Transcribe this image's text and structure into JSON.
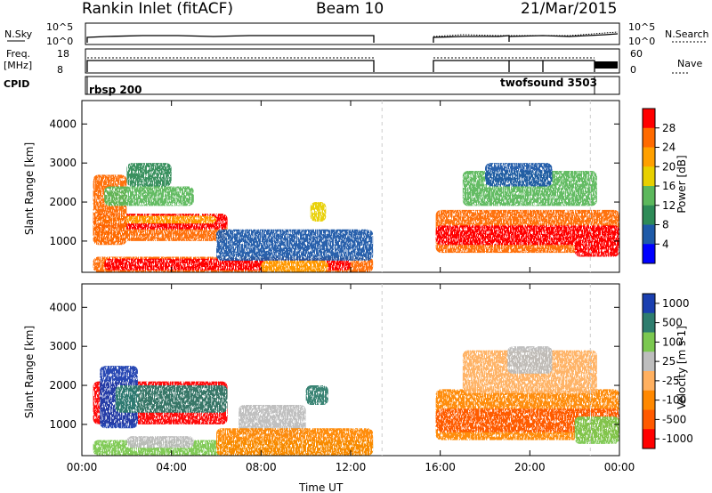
{
  "header": {
    "station": "Rankin Inlet (fitACF)",
    "beam": "Beam 10",
    "date": "21/Mar/2015"
  },
  "top_panels": {
    "nsky_label": "N.Sky",
    "nsearch_label": "N.Search",
    "nsky_ticks": [
      "10^5",
      "10^0"
    ],
    "nsky_right_ticks": [
      "10^5",
      "10^0"
    ],
    "freq_label_1": "Freq.",
    "freq_label_2": "[MHz]",
    "freq_ticks": [
      "18",
      "8"
    ],
    "nave_label": "Nave",
    "nave_ticks": [
      "60",
      "0"
    ],
    "cpid_label": "CPID",
    "cpid_values": [
      "rbsp 200",
      "twofsound 3503"
    ]
  },
  "chart_data": [
    {
      "type": "heatmap",
      "title": "",
      "ylabel": "Slant Range [km]",
      "ylim": [
        200,
        4600
      ],
      "yticks": [
        "4000",
        "3000",
        "2000",
        "1000"
      ],
      "colorbar_label": "Power [dB]",
      "colorbar_ticks": [
        "28",
        "24",
        "20",
        "16",
        "12",
        "8",
        "4"
      ],
      "colors": [
        "#ff0000",
        "#ff6a00",
        "#ffa000",
        "#e8d000",
        "#5cb85c",
        "#2e8b57",
        "#1e5aa8",
        "#0000ff"
      ]
    },
    {
      "type": "heatmap",
      "title": "",
      "xlabel": "Time UT",
      "ylabel": "Slant Range [km]",
      "ylim": [
        200,
        4600
      ],
      "yticks": [
        "4000",
        "3000",
        "2000",
        "1000"
      ],
      "xticks": [
        "00:00",
        "04:00",
        "08:00",
        "12:00",
        "16:00",
        "20:00",
        "00:00"
      ],
      "colorbar_label": "Velocity [m s-1]",
      "colorbar_ticks": [
        "1000",
        "500",
        "100",
        "25",
        "-25",
        "-100",
        "-500",
        "-1000"
      ],
      "colors": [
        "#1a3fb0",
        "#2e7d6e",
        "#7bc850",
        "#bdbdbd",
        "#ffb060",
        "#ff8800",
        "#ff5a00",
        "#ff0000"
      ]
    }
  ]
}
